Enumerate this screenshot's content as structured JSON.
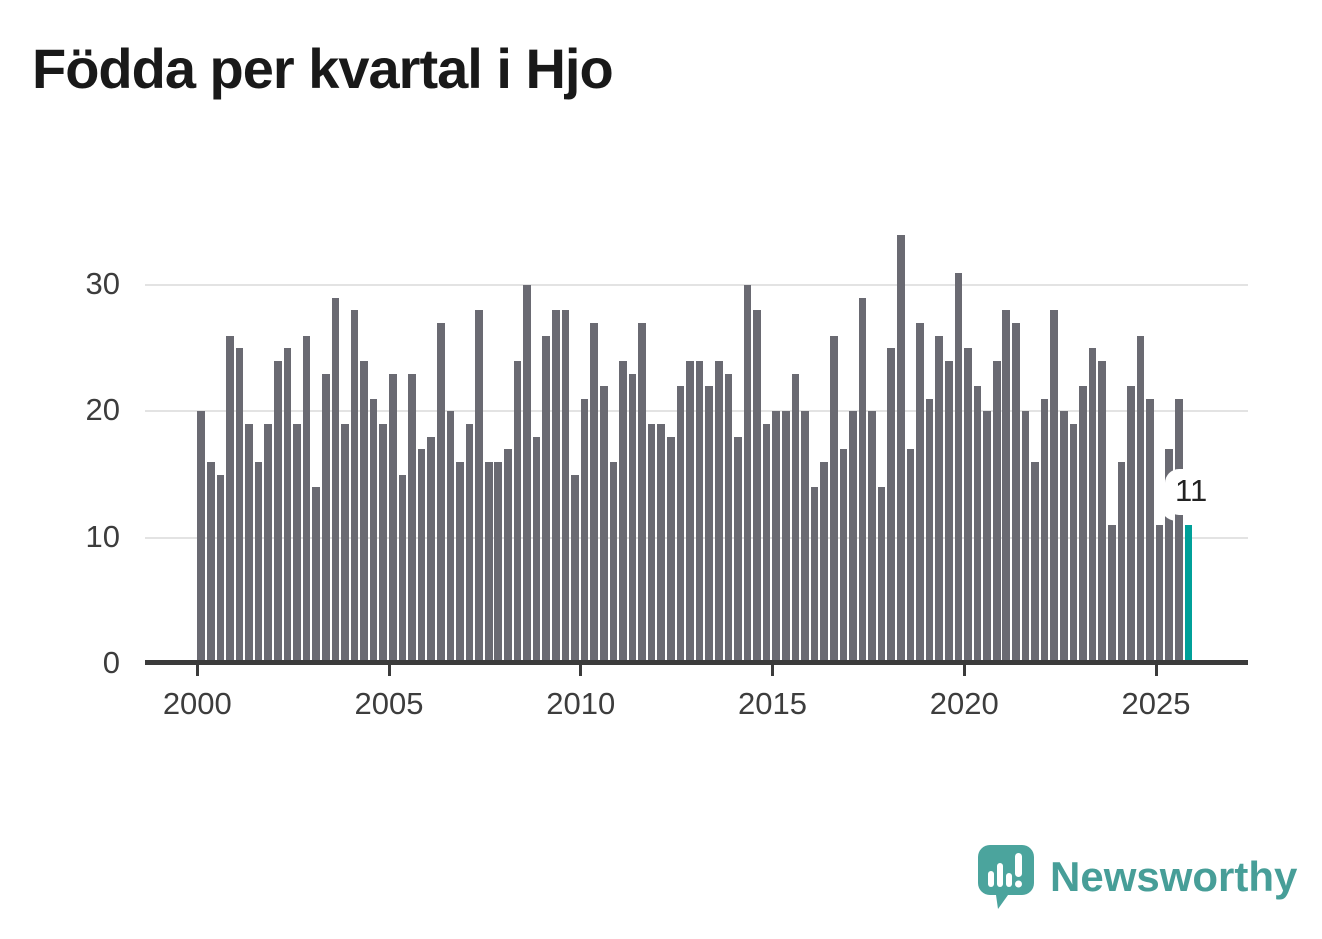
{
  "title": "Födda per kvartal i Hjo",
  "chart_data": {
    "type": "bar",
    "title": "Födda per kvartal i Hjo",
    "x_axis": {
      "tick_labels": [
        "2000",
        "2005",
        "2010",
        "2015",
        "2020",
        "2025"
      ]
    },
    "y_axis": {
      "tick_values": [
        0,
        10,
        20,
        30
      ],
      "range": [
        0,
        35
      ]
    },
    "grid": "horizontal",
    "legend": "none",
    "bar_color": "#6a6a72",
    "highlight_color": "#00a099",
    "highlight_category": "2025 Q4",
    "years": [
      {
        "year": "2000",
        "values": [
          20,
          16,
          15,
          26
        ]
      },
      {
        "year": "2001",
        "values": [
          25,
          19,
          16,
          19
        ]
      },
      {
        "year": "2002",
        "values": [
          24,
          25,
          19,
          26
        ]
      },
      {
        "year": "2003",
        "values": [
          14,
          23,
          29,
          19
        ]
      },
      {
        "year": "2004",
        "values": [
          28,
          24,
          21,
          19
        ]
      },
      {
        "year": "2005",
        "values": [
          23,
          15,
          23,
          17
        ]
      },
      {
        "year": "2006",
        "values": [
          18,
          27,
          20,
          16
        ]
      },
      {
        "year": "2007",
        "values": [
          19,
          28,
          16,
          16
        ]
      },
      {
        "year": "2008",
        "values": [
          17,
          24,
          30,
          18
        ]
      },
      {
        "year": "2009",
        "values": [
          26,
          28,
          28,
          15
        ]
      },
      {
        "year": "2010",
        "values": [
          21,
          27,
          22,
          16
        ]
      },
      {
        "year": "2011",
        "values": [
          24,
          23,
          27,
          19
        ]
      },
      {
        "year": "2012",
        "values": [
          19,
          18,
          22,
          24
        ]
      },
      {
        "year": "2013",
        "values": [
          24,
          22,
          24,
          23
        ]
      },
      {
        "year": "2014",
        "values": [
          18,
          30,
          28,
          19
        ]
      },
      {
        "year": "2015",
        "values": [
          20,
          20,
          23,
          20
        ]
      },
      {
        "year": "2016",
        "values": [
          14,
          16,
          26,
          17
        ]
      },
      {
        "year": "2017",
        "values": [
          20,
          29,
          20,
          14
        ]
      },
      {
        "year": "2018",
        "values": [
          25,
          34,
          17,
          27
        ]
      },
      {
        "year": "2019",
        "values": [
          21,
          26,
          24,
          31
        ]
      },
      {
        "year": "2020",
        "values": [
          25,
          22,
          20,
          24
        ]
      },
      {
        "year": "2021",
        "values": [
          28,
          27,
          20,
          16
        ]
      },
      {
        "year": "2022",
        "values": [
          21,
          28,
          20,
          19
        ]
      },
      {
        "year": "2023",
        "values": [
          22,
          25,
          24,
          11
        ]
      },
      {
        "year": "2024",
        "values": [
          16,
          22,
          26,
          21
        ]
      },
      {
        "year": "2025",
        "values": [
          11,
          17,
          21,
          11
        ]
      }
    ]
  },
  "annotation": {
    "text": "11"
  },
  "logo": {
    "text": "Newsworthy"
  }
}
